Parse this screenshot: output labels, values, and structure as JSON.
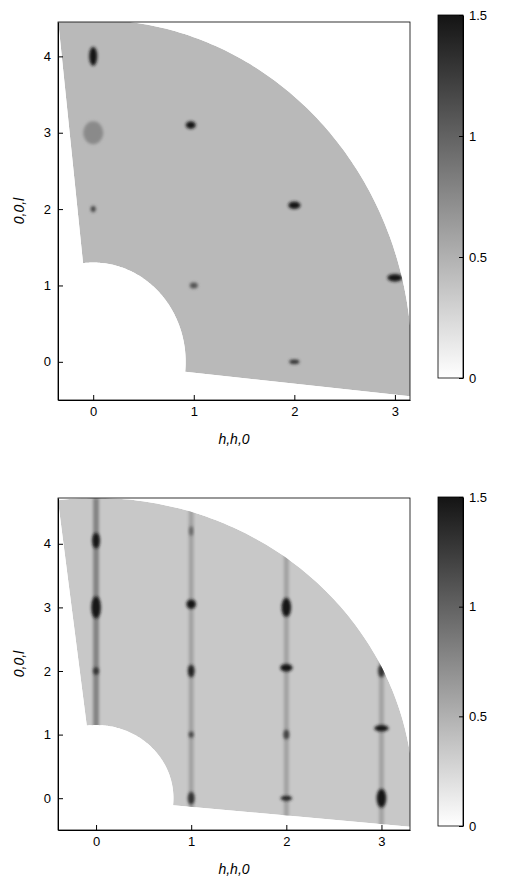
{
  "chart_data": [
    {
      "type": "intensity_map",
      "x_label": "h,h,0",
      "y_label": "0,0,l",
      "xlim": [
        -0.35,
        3.15
      ],
      "ylim": [
        -0.5,
        4.45
      ],
      "xticks": [
        0,
        1,
        2,
        3
      ],
      "yticks": [
        0,
        1,
        2,
        3,
        4
      ],
      "colorbar": {
        "range": [
          0,
          1.5
        ],
        "ticks": [
          0,
          0.5,
          1,
          1.5
        ]
      },
      "background": 0.45,
      "coverage": {
        "q_range": [
          1.3,
          4.48
        ],
        "angle_range": [
          -5.8,
          96.3
        ]
      },
      "peaks": {
        "x": [
          0,
          0,
          0,
          0.97,
          2.0,
          3.0,
          2.0,
          1.0
        ],
        "y": [
          4.0,
          3.0,
          2.0,
          3.1,
          2.05,
          1.1,
          0.0,
          1.0
        ],
        "values": [
          1.5,
          0.75,
          1.2,
          1.5,
          1.5,
          1.5,
          1.3,
          1.1
        ],
        "x_width": [
          0.08,
          0.2,
          0.05,
          0.1,
          0.12,
          0.15,
          0.1,
          0.08
        ],
        "y_width": [
          0.25,
          0.3,
          0.08,
          0.1,
          0.1,
          0.1,
          0.06,
          0.08
        ]
      }
    },
    {
      "type": "intensity_map",
      "x_label": "h,h,0",
      "y_label": "0,0,l",
      "xlim": [
        -0.4,
        3.3
      ],
      "ylim": [
        -0.5,
        4.72
      ],
      "xticks": [
        0,
        1,
        2,
        3
      ],
      "yticks": [
        0,
        1,
        2,
        3,
        4
      ],
      "colorbar": {
        "range": [
          0,
          1.5
        ],
        "ticks": [
          0,
          0.5,
          1,
          1.5
        ]
      },
      "background": 0.35,
      "coverage": {
        "q_range": [
          1.15,
          4.72
        ],
        "angle_range": [
          -5.5,
          96.9
        ]
      },
      "rods": {
        "x": [
          0,
          1,
          2,
          3
        ],
        "values": [
          0.8,
          0.6,
          0.6,
          0.6
        ],
        "x_width": [
          0.06,
          0.05,
          0.05,
          0.05
        ]
      },
      "peaks": {
        "x": [
          0,
          0,
          0,
          1,
          1,
          1,
          1,
          1,
          2,
          2,
          2,
          2,
          3,
          3,
          3
        ],
        "y": [
          4.05,
          3.0,
          2.0,
          4.2,
          3.05,
          2.0,
          1.0,
          0.0,
          3.0,
          2.05,
          1.0,
          0.0,
          2.0,
          1.1,
          0.0
        ],
        "values": [
          1.5,
          1.5,
          1.3,
          1.0,
          1.5,
          1.4,
          1.2,
          1.3,
          1.5,
          1.5,
          1.2,
          1.4,
          1.3,
          1.5,
          1.5
        ],
        "x_width": [
          0.08,
          0.1,
          0.06,
          0.04,
          0.1,
          0.07,
          0.05,
          0.07,
          0.1,
          0.13,
          0.06,
          0.12,
          0.07,
          0.15,
          0.1
        ],
        "y_width": [
          0.25,
          0.35,
          0.12,
          0.15,
          0.15,
          0.2,
          0.1,
          0.2,
          0.3,
          0.12,
          0.15,
          0.08,
          0.2,
          0.1,
          0.3
        ]
      }
    }
  ]
}
